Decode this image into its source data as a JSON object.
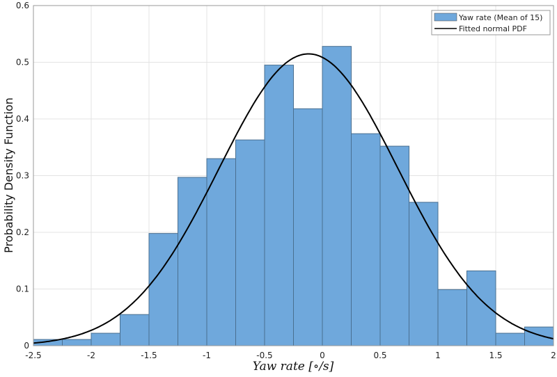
{
  "chart_data": {
    "type": "bar",
    "subtype": "histogram-with-fitted-curve",
    "xlabel": "Yaw rate [∘/s]",
    "ylabel": "Probability Density Function",
    "xlim": [
      -2.5,
      2
    ],
    "ylim": [
      0,
      0.6
    ],
    "xticks": [
      "-2.5",
      "-2",
      "-1.5",
      "-1",
      "-0.5",
      "0",
      "0.5",
      "1",
      "1.5",
      "2"
    ],
    "yticks": [
      "0",
      "0.1",
      "0.2",
      "0.3",
      "0.4",
      "0.5",
      "0.6"
    ],
    "grid": true,
    "legend_position": "top-right",
    "bin_width": 0.25,
    "bin_edges_start": [
      -2.5,
      -2.25,
      -2.0,
      -1.75,
      -1.5,
      -1.25,
      -1.0,
      -0.75,
      -0.5,
      -0.25,
      0.0,
      0.25,
      0.5,
      0.75,
      1.0,
      1.25,
      1.5,
      1.75
    ],
    "series": [
      {
        "name": "Yaw rate (Mean of 15)",
        "color": "#6fa8dc",
        "values": [
          0.011,
          0.011,
          0.022,
          0.055,
          0.198,
          0.297,
          0.33,
          0.363,
          0.495,
          0.418,
          0.528,
          0.374,
          0.352,
          0.253,
          0.099,
          0.132,
          0.022,
          0.033
        ]
      },
      {
        "name": "Fitted normal PDF",
        "color": "#000000",
        "type": "line",
        "mu": -0.12,
        "sigma": 0.775
      }
    ]
  }
}
